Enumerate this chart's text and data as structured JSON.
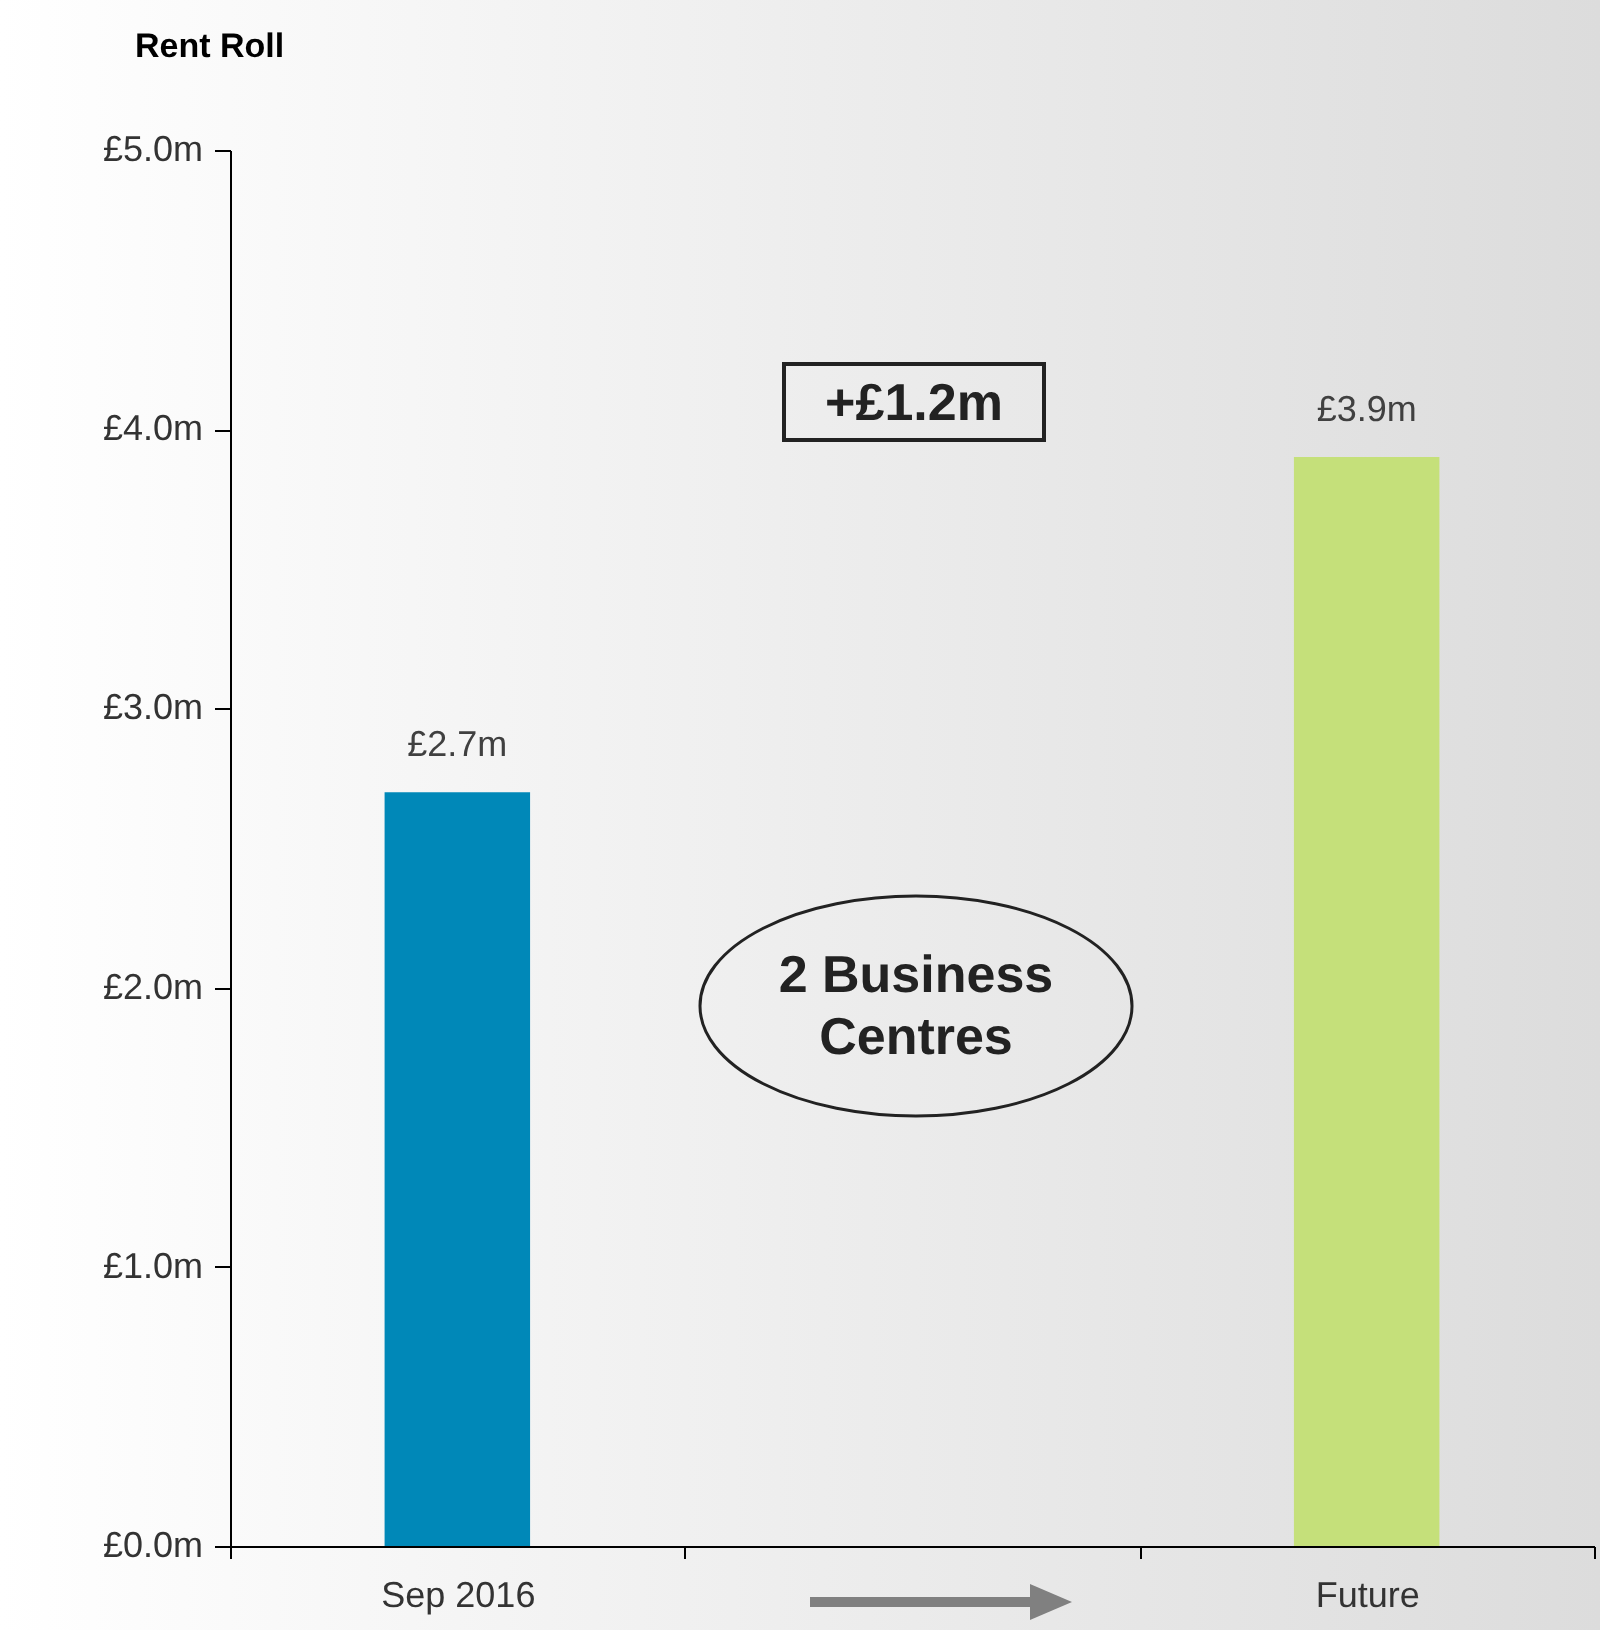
{
  "chart_data": {
    "type": "bar",
    "ylabel": "Rent Roll",
    "categories": [
      "Sep 2016",
      null,
      "Future"
    ],
    "values": [
      2.7,
      null,
      3.9
    ],
    "colors": [
      "#0088b8",
      null,
      "#c5e07a"
    ],
    "value_labels": [
      "£2.7m",
      null,
      "£3.9m"
    ],
    "ylim": [
      0,
      5
    ],
    "yticks": [
      {
        "value": 0,
        "label": "£0.0m"
      },
      {
        "value": 1,
        "label": "£1.0m"
      },
      {
        "value": 2,
        "label": "£2.0m"
      },
      {
        "value": 3,
        "label": "£3.0m"
      },
      {
        "value": 4,
        "label": "£4.0m"
      },
      {
        "value": 5,
        "label": "£5.0m"
      }
    ],
    "annotations": [
      "+£1.2m",
      "2 Business Centres"
    ],
    "grid": false
  }
}
